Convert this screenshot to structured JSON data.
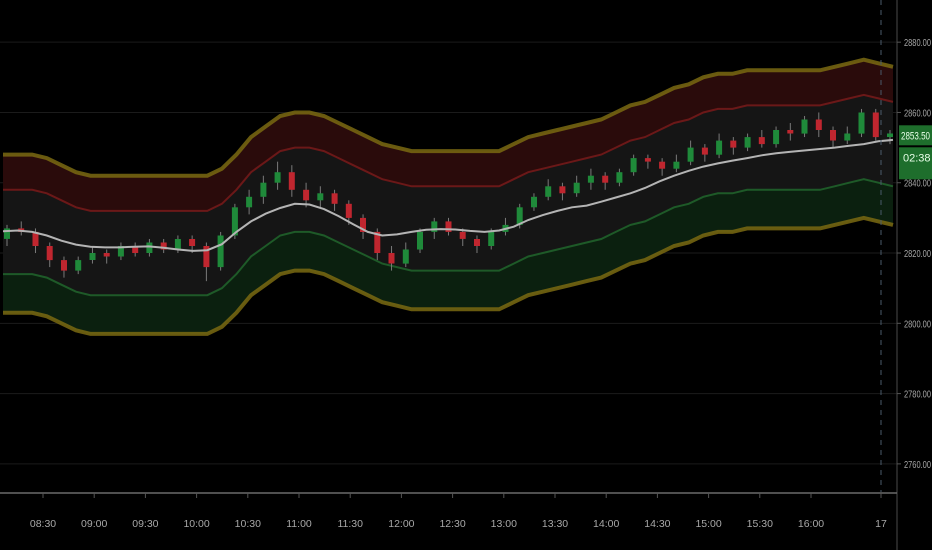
{
  "chart_data": {
    "type": "line",
    "title": "",
    "xlabel": "",
    "ylabel": "",
    "ylim": [
      2752,
      2892
    ],
    "grid": true,
    "colors": {
      "up": "#1f8a3a",
      "down": "#c0262f",
      "mid": "#b4b4b4",
      "upper_outer": "#7a6a12",
      "upper_inner": "#6b1818",
      "lower_inner": "#1e5a28",
      "lower_outer": "#7a6a12",
      "badge": "#1e6e2c"
    },
    "x_ticks": [
      "08:30",
      "09:00",
      "09:30",
      "10:00",
      "10:30",
      "11:00",
      "11:30",
      "12:00",
      "12:30",
      "13:00",
      "13:30",
      "14:00",
      "14:30",
      "15:00",
      "15:30",
      "16:00",
      "17"
    ],
    "y_ticks": [
      "2880.00",
      "2860.00",
      "2840.00",
      "2820.00",
      "2800.00",
      "2780.00",
      "2760.00"
    ],
    "y_tick_values": [
      2880,
      2860,
      2840,
      2820,
      2800,
      2780,
      2760
    ],
    "last_price": "2853.50",
    "last_price_value": 2853.5,
    "countdown": "02:38",
    "series": [
      {
        "values": [
          2826.2,
          2826.4,
          2826.0,
          2825.0,
          2823.5,
          2822.4,
          2821.8,
          2821.6,
          2821.6,
          2821.8,
          2821.9,
          2821.5,
          2821.0,
          2820.6,
          2820.8,
          2822.5,
          2826.0,
          2829.0,
          2831.2,
          2832.8,
          2834.0,
          2833.8,
          2832.5,
          2830.5,
          2828.2,
          2826.0,
          2825.0,
          2825.3,
          2826.0,
          2826.6,
          2826.8,
          2826.7,
          2826.3,
          2826.0,
          2826.4,
          2827.5,
          2829.4,
          2830.8,
          2832.0,
          2833.0,
          2833.5,
          2834.6,
          2835.8,
          2837.0,
          2838.5,
          2840.4,
          2842.0,
          2843.4,
          2844.6,
          2845.5,
          2846.3,
          2847.0,
          2847.8,
          2848.4,
          2848.8,
          2849.2,
          2849.6,
          2850.0,
          2850.5,
          2851.0,
          2851.8,
          2852.2
        ]
      },
      {
        "values": [
          2838,
          2838,
          2838,
          2837,
          2835,
          2833,
          2832,
          2832,
          2832,
          2832,
          2832,
          2832,
          2832,
          2832,
          2832,
          2834,
          2838,
          2843,
          2846,
          2849,
          2850,
          2850,
          2849,
          2847,
          2845,
          2843,
          2841,
          2840,
          2839,
          2839,
          2839,
          2839,
          2839,
          2839,
          2839,
          2841,
          2843,
          2844,
          2845,
          2846,
          2847,
          2848,
          2850,
          2852,
          2853,
          2855,
          2857,
          2858,
          2860,
          2861,
          2861,
          2862,
          2862,
          2862,
          2862,
          2862,
          2862,
          2863,
          2864,
          2865,
          2864,
          2863
        ]
      },
      {
        "values": [
          2848,
          2848,
          2848,
          2847,
          2845,
          2843,
          2842,
          2842,
          2842,
          2842,
          2842,
          2842,
          2842,
          2842,
          2842,
          2844,
          2848,
          2853,
          2856,
          2859,
          2860,
          2860,
          2859,
          2857,
          2855,
          2853,
          2851,
          2850,
          2849,
          2849,
          2849,
          2849,
          2849,
          2849,
          2849,
          2851,
          2853,
          2854,
          2855,
          2856,
          2857,
          2858,
          2860,
          2862,
          2863,
          2865,
          2867,
          2868,
          2870,
          2871,
          2871,
          2872,
          2872,
          2872,
          2872,
          2872,
          2872,
          2873,
          2874,
          2875,
          2874,
          2873
        ]
      },
      {
        "values": [
          2814,
          2814,
          2814,
          2813,
          2811,
          2809,
          2808,
          2808,
          2808,
          2808,
          2808,
          2808,
          2808,
          2808,
          2808,
          2810,
          2814,
          2819,
          2822,
          2825,
          2826,
          2826,
          2825,
          2823,
          2821,
          2819,
          2817,
          2816,
          2815,
          2815,
          2815,
          2815,
          2815,
          2815,
          2815,
          2817,
          2819,
          2820,
          2821,
          2822,
          2823,
          2824,
          2826,
          2828,
          2829,
          2831,
          2833,
          2834,
          2836,
          2837,
          2837,
          2838,
          2838,
          2838,
          2838,
          2838,
          2838,
          2839,
          2840,
          2841,
          2840,
          2839
        ]
      },
      {
        "values": [
          2803,
          2803,
          2803,
          2802,
          2800,
          2798,
          2797,
          2797,
          2797,
          2797,
          2797,
          2797,
          2797,
          2797,
          2797,
          2799,
          2803,
          2808,
          2811,
          2814,
          2815,
          2815,
          2814,
          2812,
          2810,
          2808,
          2806,
          2805,
          2804,
          2804,
          2804,
          2804,
          2804,
          2804,
          2804,
          2806,
          2808,
          2809,
          2810,
          2811,
          2812,
          2813,
          2815,
          2817,
          2818,
          2820,
          2822,
          2823,
          2825,
          2826,
          2826,
          2827,
          2827,
          2827,
          2827,
          2827,
          2827,
          2828,
          2829,
          2830,
          2829,
          2828
        ]
      }
    ],
    "candles": [
      [
        2824,
        2827,
        2822,
        2828
      ],
      [
        2827,
        2826,
        2825,
        2829
      ],
      [
        2826,
        2822,
        2820,
        2827
      ],
      [
        2822,
        2818,
        2816,
        2823
      ],
      [
        2818,
        2815,
        2813,
        2819
      ],
      [
        2815,
        2818,
        2814,
        2819
      ],
      [
        2818,
        2820,
        2817,
        2822
      ],
      [
        2820,
        2819,
        2817,
        2821
      ],
      [
        2819,
        2822,
        2818,
        2823
      ],
      [
        2822,
        2820,
        2819,
        2823
      ],
      [
        2820,
        2823,
        2819,
        2824
      ],
      [
        2823,
        2821,
        2820,
        2824
      ],
      [
        2821,
        2824,
        2820,
        2825
      ],
      [
        2824,
        2822,
        2820,
        2825
      ],
      [
        2822,
        2816,
        2812,
        2823
      ],
      [
        2816,
        2825,
        2815,
        2826
      ],
      [
        2825,
        2833,
        2824,
        2834
      ],
      [
        2833,
        2836,
        2831,
        2838
      ],
      [
        2836,
        2840,
        2834,
        2842
      ],
      [
        2840,
        2843,
        2838,
        2846
      ],
      [
        2843,
        2838,
        2836,
        2845
      ],
      [
        2838,
        2835,
        2833,
        2840
      ],
      [
        2835,
        2837,
        2833,
        2839
      ],
      [
        2837,
        2834,
        2832,
        2838
      ],
      [
        2834,
        2830,
        2828,
        2835
      ],
      [
        2830,
        2826,
        2824,
        2831
      ],
      [
        2826,
        2820,
        2818,
        2827
      ],
      [
        2820,
        2817,
        2815,
        2822
      ],
      [
        2817,
        2821,
        2816,
        2823
      ],
      [
        2821,
        2826,
        2820,
        2827
      ],
      [
        2826,
        2829,
        2824,
        2830
      ],
      [
        2829,
        2826,
        2825,
        2830
      ],
      [
        2826,
        2824,
        2822,
        2827
      ],
      [
        2824,
        2822,
        2820,
        2825
      ],
      [
        2822,
        2826,
        2821,
        2827
      ],
      [
        2826,
        2828,
        2825,
        2830
      ],
      [
        2828,
        2833,
        2827,
        2834
      ],
      [
        2833,
        2836,
        2832,
        2837
      ],
      [
        2836,
        2839,
        2835,
        2841
      ],
      [
        2839,
        2837,
        2835,
        2840
      ],
      [
        2837,
        2840,
        2836,
        2842
      ],
      [
        2840,
        2842,
        2838,
        2844
      ],
      [
        2842,
        2840,
        2838,
        2843
      ],
      [
        2840,
        2843,
        2839,
        2844
      ],
      [
        2843,
        2847,
        2842,
        2848
      ],
      [
        2847,
        2846,
        2844,
        2848
      ],
      [
        2846,
        2844,
        2842,
        2847
      ],
      [
        2844,
        2846,
        2843,
        2848
      ],
      [
        2846,
        2850,
        2845,
        2852
      ],
      [
        2850,
        2848,
        2846,
        2851
      ],
      [
        2848,
        2852,
        2847,
        2854
      ],
      [
        2852,
        2850,
        2848,
        2853
      ],
      [
        2850,
        2853,
        2849,
        2854
      ],
      [
        2853,
        2851,
        2850,
        2855
      ],
      [
        2851,
        2855,
        2850,
        2856
      ],
      [
        2855,
        2854,
        2852,
        2857
      ],
      [
        2854,
        2858,
        2853,
        2859
      ],
      [
        2858,
        2855,
        2853,
        2860
      ],
      [
        2855,
        2852,
        2850,
        2856
      ],
      [
        2852,
        2854,
        2851,
        2856
      ],
      [
        2854,
        2860,
        2853,
        2861
      ],
      [
        2860,
        2853,
        2852,
        2861
      ],
      [
        2853,
        2854,
        2851,
        2855
      ]
    ]
  }
}
